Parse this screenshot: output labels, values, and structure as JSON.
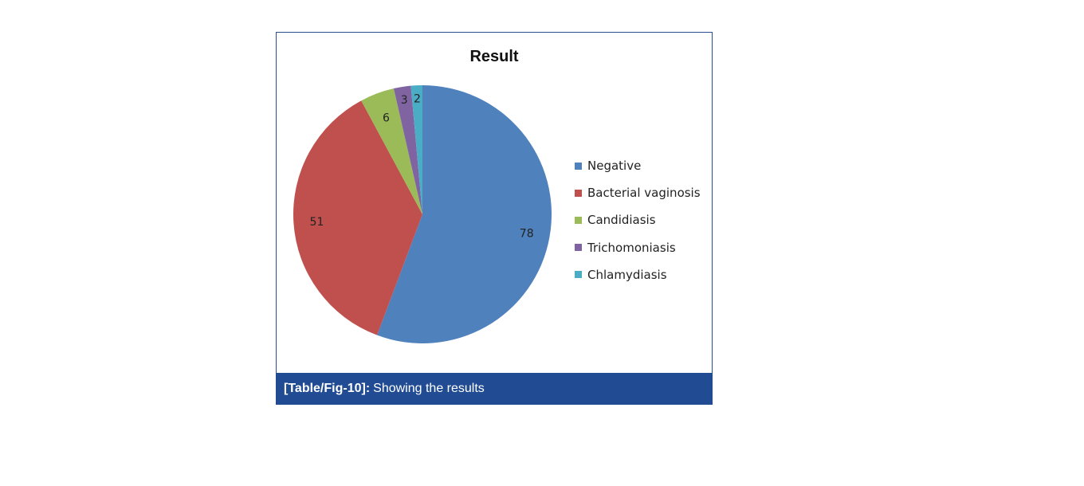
{
  "chart_data": {
    "type": "pie",
    "title": "Result",
    "categories": [
      "Negative",
      "Bacterial vaginosis",
      "Candidiasis",
      "Trichomoniasis",
      "Chlamydiasis"
    ],
    "values": [
      78,
      51,
      6,
      3,
      2
    ],
    "colors": [
      "#4f81bd",
      "#c0504d",
      "#9bbb59",
      "#8064a2",
      "#4bacc6"
    ],
    "legend": "right",
    "data_labels": true
  },
  "caption": {
    "label": "[Table/Fig-10]:",
    "text": "Showing the results"
  }
}
